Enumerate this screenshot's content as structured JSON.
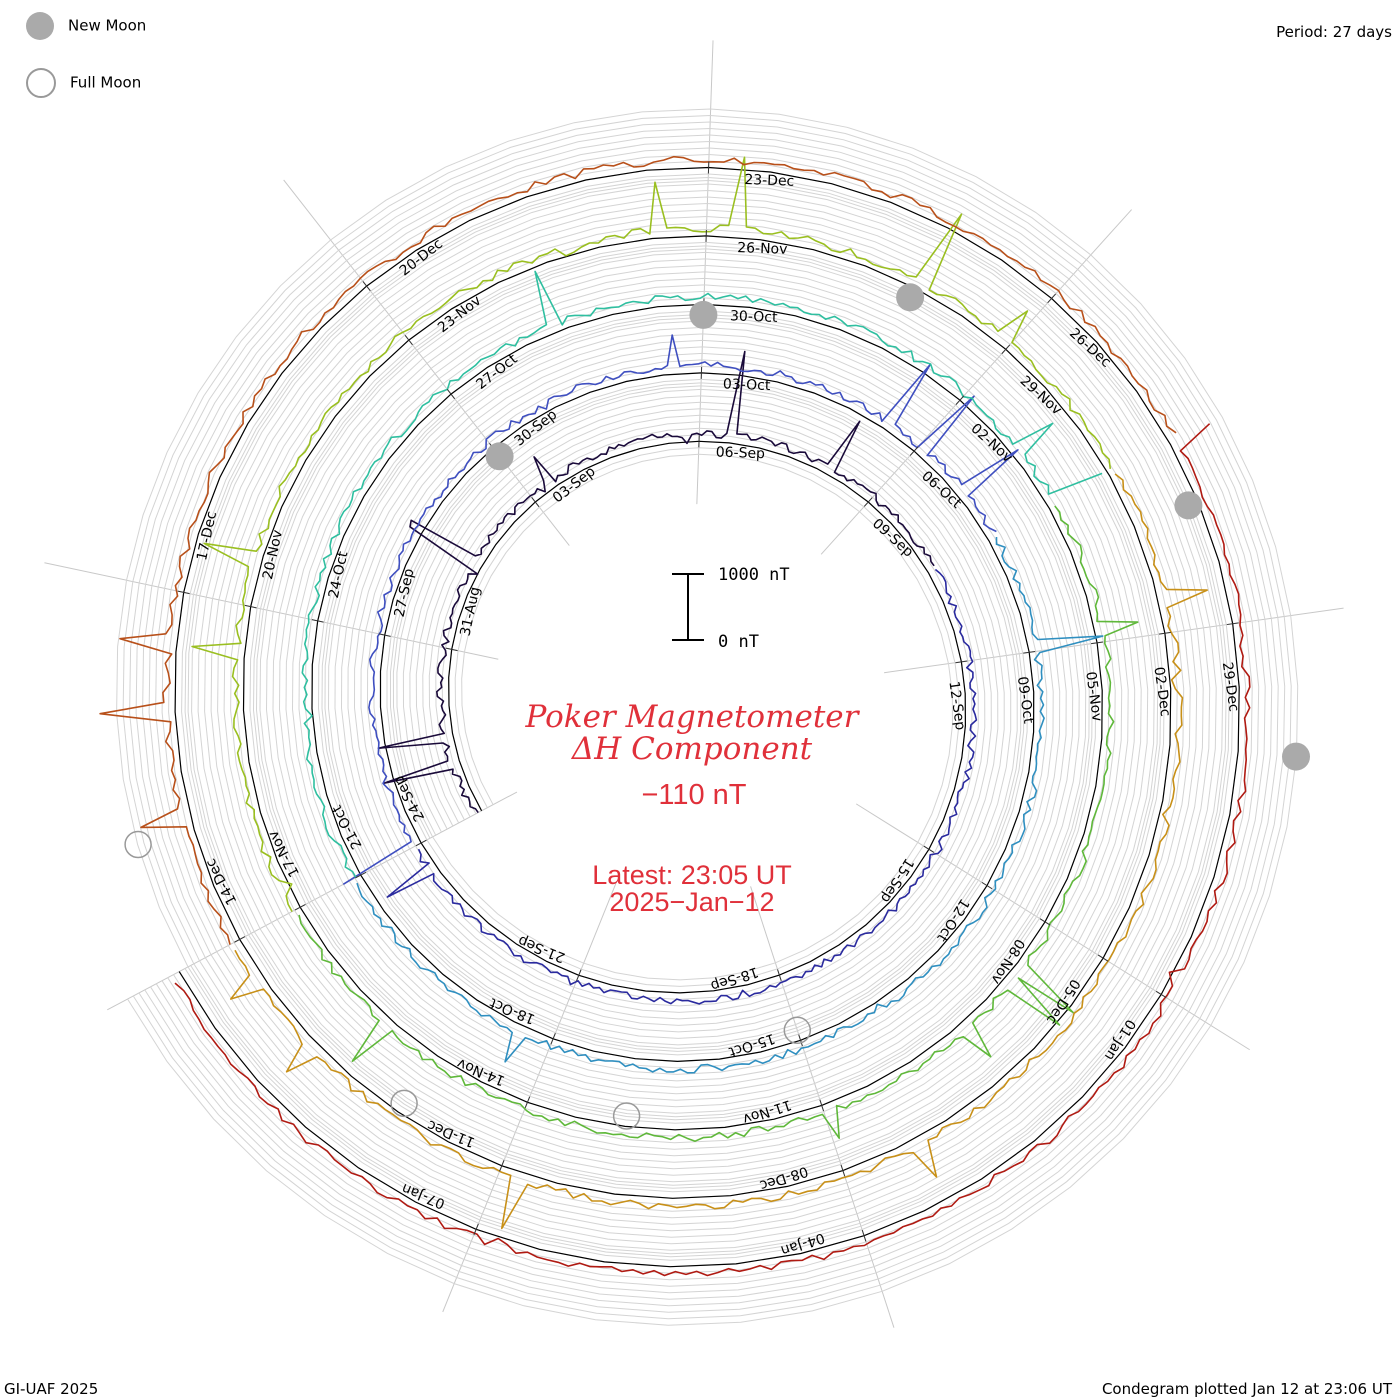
{
  "legend": {
    "new_moon_label": "New Moon",
    "full_moon_label": "Full Moon",
    "new_moon_color": "#aaaaaa",
    "full_moon_color": "#999999"
  },
  "header": {
    "period": "Period: 27 days"
  },
  "footer": {
    "left": "GI-UAF 2025",
    "right": "Condegram plotted Jan 12 at 23:06 UT"
  },
  "chart_data": {
    "type": "line",
    "title_line1": "Poker Magnetometer",
    "title_line2": "ΔH Component",
    "current_value": "−110 nT",
    "latest_time": "Latest: 23:05 UT",
    "latest_date": "2025−Jan−12",
    "scale_bar": {
      "top_label": "1000 nT",
      "bottom_label": "0 nT",
      "range_nT": [
        0,
        1000
      ]
    },
    "period_days": 27,
    "colors": [
      "#1a0a3a",
      "#2a2a9e",
      "#3f4fc0",
      "#2f8fc0",
      "#2fbfa0",
      "#5fb83a",
      "#9abf20",
      "#c89018",
      "#b8501a",
      "#b01a12"
    ],
    "revolutions": [
      {
        "name": "rev1",
        "dates": [
          "31-Aug",
          "03-Sep",
          "06-Sep",
          "09-Sep",
          "12-Sep",
          "15-Sep",
          "18-Sep",
          "21-Sep"
        ]
      },
      {
        "name": "rev2",
        "dates": [
          "24-Sep",
          "27-Sep",
          "30-Sep",
          "03-Oct",
          "06-Oct",
          "09-Oct",
          "12-Oct",
          "15-Oct",
          "18-Oct"
        ]
      },
      {
        "name": "rev3",
        "dates": [
          "21-Oct",
          "24-Oct",
          "27-Oct",
          "30-Oct",
          "02-Nov",
          "05-Nov",
          "08-Nov",
          "11-Nov",
          "14-Nov"
        ]
      },
      {
        "name": "rev4",
        "dates": [
          "17-Nov",
          "20-Nov",
          "23-Nov",
          "26-Nov",
          "29-Nov",
          "02-Dec",
          "05-Dec",
          "08-Dec",
          "11-Dec"
        ]
      },
      {
        "name": "rev5",
        "dates": [
          "14-Dec",
          "17-Dec",
          "20-Dec",
          "23-Dec",
          "26-Dec",
          "29-Dec",
          "01-Jan",
          "04-Jan",
          "07-Jan"
        ]
      }
    ],
    "moon_events": [
      {
        "type": "new",
        "date": "03-Sep"
      },
      {
        "type": "full",
        "date": "18-Sep"
      },
      {
        "type": "new",
        "date": "03-Oct"
      },
      {
        "type": "full",
        "date": "17-Oct"
      },
      {
        "type": "new",
        "date": "01-Nov"
      },
      {
        "type": "full",
        "date": "15-Nov"
      },
      {
        "type": "new",
        "date": "01-Dec"
      },
      {
        "type": "full",
        "date": "15-Dec"
      },
      {
        "type": "new",
        "date": "30-Dec"
      }
    ]
  }
}
